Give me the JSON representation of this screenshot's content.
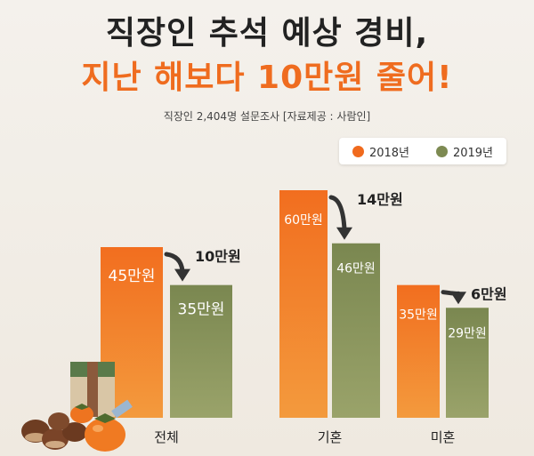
{
  "header": {
    "title_line1": "직장인 추석 예상 경비,",
    "title_line2": "지난 해보다 10만원 줄어!",
    "subtitle": "직장인 2,404명 설문조사  [자료제공 : 사람인]"
  },
  "colors": {
    "series_2018": "#f06a1d",
    "series_2019": "#7d8a52",
    "arrow": "#333333"
  },
  "chart_data": {
    "type": "bar",
    "categories": [
      "전체",
      "기혼",
      "미혼"
    ],
    "series": [
      {
        "name": "2018년",
        "values": [
          45,
          60,
          35
        ],
        "labels": [
          "45만원",
          "60만원",
          "35만원"
        ]
      },
      {
        "name": "2019년",
        "values": [
          35,
          46,
          29
        ],
        "labels": [
          "35만원",
          "46만원",
          "29만원"
        ]
      }
    ],
    "differences": [
      "10만원",
      "14만원",
      "6만원"
    ],
    "ylim": [
      0,
      65
    ],
    "legend_position": "top-right",
    "grid": false
  }
}
